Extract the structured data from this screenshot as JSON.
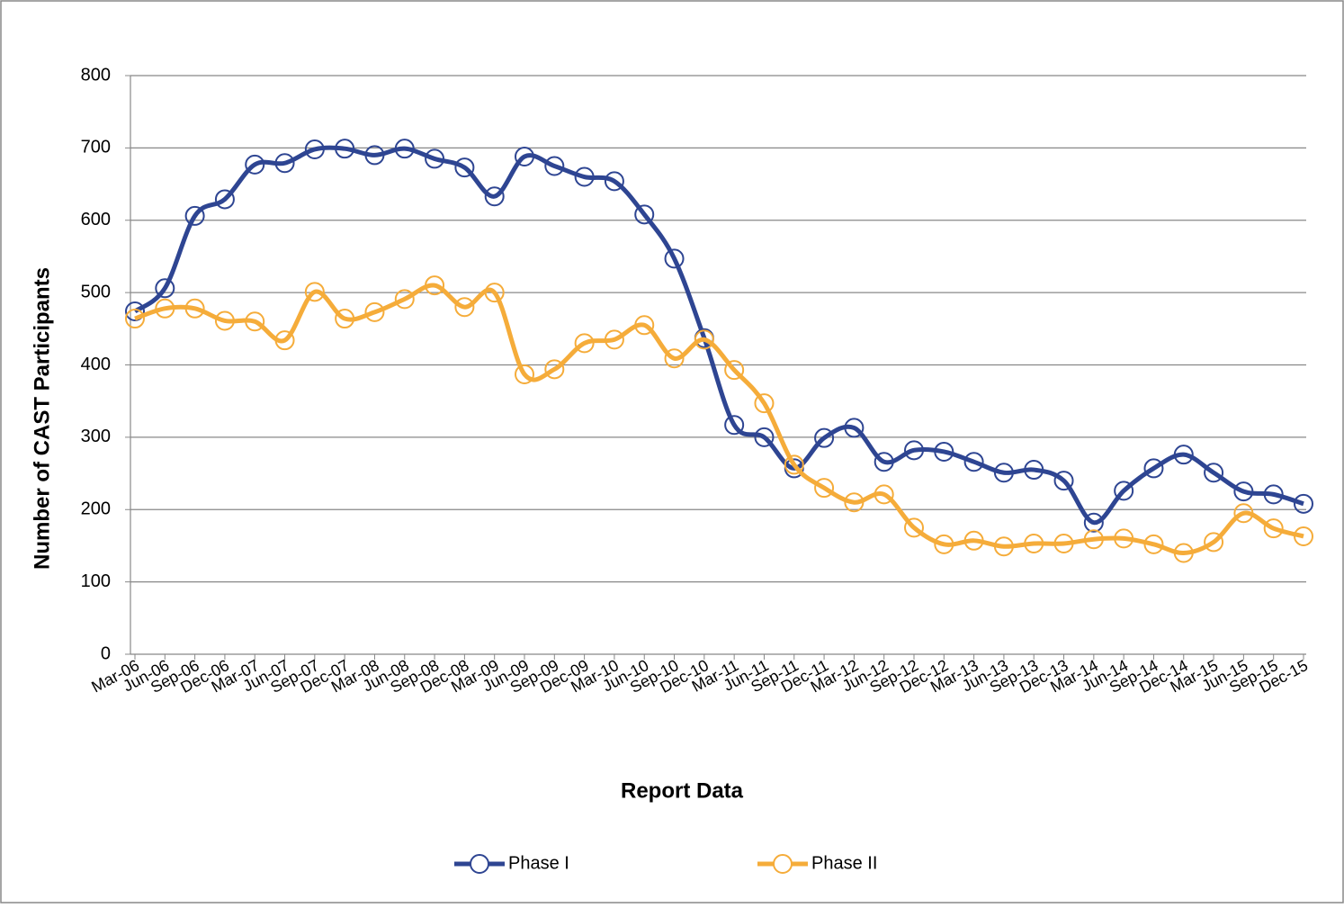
{
  "chart_data": {
    "type": "line",
    "x_label": "Report Data",
    "y_label": "Number of CAST Participants",
    "categories": [
      "Mar-06",
      "Jun-06",
      "Sep-06",
      "Dec-06",
      "Mar-07",
      "Jun-07",
      "Sep-07",
      "Dec-07",
      "Mar-08",
      "Jun-08",
      "Sep-08",
      "Dec-08",
      "Mar-09",
      "Jun-09",
      "Sep-09",
      "Dec-09",
      "Mar-10",
      "Jun-10",
      "Sep-10",
      "Dec-10",
      "Mar-11",
      "Jun-11",
      "Sep-11",
      "Dec-11",
      "Mar-12",
      "Jun-12",
      "Sep-12",
      "Dec-12",
      "Mar-13",
      "Jun-13",
      "Sep-13",
      "Dec-13",
      "Mar-14",
      "Jun-14",
      "Sep-14",
      "Dec-14",
      "Mar-15",
      "Jun-15",
      "Sep-15",
      "Dec-15"
    ],
    "series": [
      {
        "name": "Phase I",
        "color": "#2e4592",
        "values": [
          474,
          506,
          606,
          629,
          677,
          679,
          698,
          699,
          690,
          699,
          685,
          673,
          633,
          688,
          675,
          660,
          654,
          608,
          547,
          437,
          317,
          300,
          257,
          299,
          313,
          266,
          282,
          280,
          266,
          251,
          255,
          240,
          182,
          226,
          257,
          276,
          251,
          225,
          221,
          208
        ]
      },
      {
        "name": "Phase II",
        "color": "#f5ac3a",
        "values": [
          464,
          478,
          478,
          461,
          460,
          434,
          501,
          464,
          473,
          491,
          510,
          480,
          500,
          387,
          394,
          430,
          435,
          455,
          409,
          435,
          393,
          347,
          262,
          230,
          210,
          221,
          175,
          152,
          157,
          149,
          153,
          153,
          159,
          160,
          152,
          140,
          155,
          195,
          174,
          163
        ]
      }
    ],
    "ylim": [
      0,
      800
    ],
    "yticks": [
      0,
      100,
      200,
      300,
      400,
      500,
      600,
      700,
      800
    ],
    "grid": true,
    "legend": "bottom",
    "smooth": true
  }
}
